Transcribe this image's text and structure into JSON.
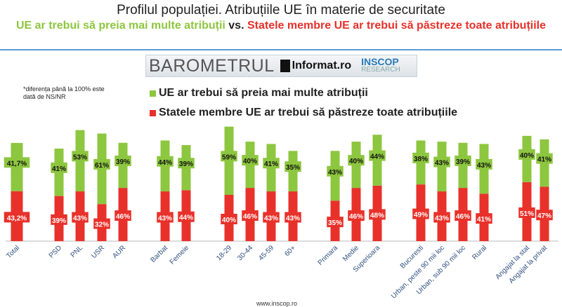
{
  "title": "Profilul populației. Atribuțiile UE în materie de securitate",
  "subtitle": {
    "green": "UE ar trebui să preia mai multe atribuții",
    "vs": "vs.",
    "red": "Statele membre UE ar trebui să păstreze toate atribuțiile"
  },
  "logo": {
    "barometru": "BAROMETRUL",
    "informat": "Informat.ro",
    "inscop": "INSCOP",
    "research": "RESEARCH"
  },
  "note": "*diferența până la 100% este dată de NS/NR",
  "footer": "www.inscop.ro",
  "colors": {
    "green": "#8dc63f",
    "red": "#e8312a",
    "axis_label": "#2f4f7f"
  },
  "chart_data": {
    "type": "bar",
    "stacked": true,
    "legend_placement": "top",
    "grid": false,
    "categories": [
      "Total",
      "PSD",
      "PNL",
      "USR",
      "AUR",
      "Barbat",
      "Femeie",
      "18-29",
      "30-44",
      "45-59",
      "60+",
      "Primara",
      "Medie",
      "Superioara",
      "Bucuresti",
      "Urban, peste 90 mii loc",
      "Urban, sub 90 mii loc",
      "Rural",
      "Angajat la stat",
      "Angajat la privat"
    ],
    "series": [
      {
        "name": "Statele membre UE ar trebui să păstreze toate atribuțiile",
        "color": "#e8312a",
        "values": [
          43.2,
          39,
          43,
          32,
          46,
          43,
          44,
          40,
          46,
          43,
          43,
          35,
          46,
          48,
          49,
          43,
          46,
          41,
          51,
          47
        ],
        "labels": [
          "43,2%",
          "39%",
          "43%",
          "32%",
          "46%",
          "43%",
          "44%",
          "40%",
          "46%",
          "43%",
          "43%",
          "35%",
          "46%",
          "48%",
          "49%",
          "43%",
          "46%",
          "41%",
          "51%",
          "47%"
        ]
      },
      {
        "name": "UE ar trebui să preia mai multe atribuții",
        "color": "#8dc63f",
        "values": [
          41.7,
          41,
          53,
          61,
          39,
          44,
          39,
          59,
          40,
          41,
          35,
          43,
          40,
          44,
          38,
          43,
          39,
          43,
          40,
          41
        ],
        "labels": [
          "41,7%",
          "41%",
          "53%",
          "61%",
          "39%",
          "44%",
          "39%",
          "59%",
          "40%",
          "41%",
          "35%",
          "43%",
          "40%",
          "44%",
          "38%",
          "43%",
          "39%",
          "43%",
          "40%",
          "41%"
        ]
      }
    ]
  }
}
